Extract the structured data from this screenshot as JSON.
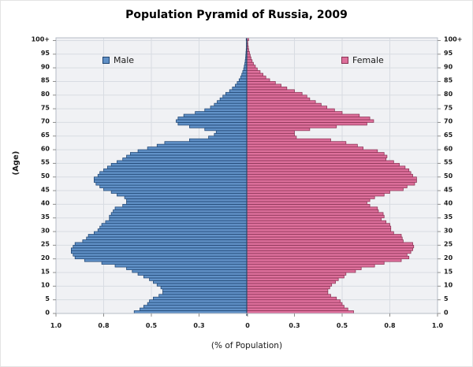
{
  "title": "Population Pyramid of Russia, 2009",
  "legend": {
    "male_label": "Male",
    "female_label": "Female"
  },
  "axes": {
    "y_title": "(Age)",
    "x_title": "(% of Population)",
    "y_tick_labels": [
      "0",
      "5",
      "10",
      "15",
      "20",
      "25",
      "30",
      "35",
      "40",
      "45",
      "50",
      "55",
      "60",
      "65",
      "70",
      "75",
      "80",
      "85",
      "90",
      "95",
      "100+"
    ],
    "x_tick_values": [
      1.0,
      0.75,
      0.5,
      0.25
    ],
    "x_tick_labels_outer": [
      "1.0",
      "0.8",
      "0.5",
      "0.3"
    ],
    "x_center_label": "0"
  },
  "colors": {
    "male_fill": "#6090c6",
    "male_border": "#1f4572",
    "female_fill": "#dd6f9b",
    "female_border": "#8a3354",
    "plot_bg": "#f0f1f4",
    "gridline": "#d8dce2",
    "plot_border": "#b6bcc6",
    "center_axis": "#2a4a6b",
    "tick": "#8c8c8c",
    "label_text": "#1a1a1a"
  },
  "chart_data": {
    "type": "bar",
    "subtype": "population-pyramid",
    "title": "Population Pyramid of Russia, 2009",
    "xlabel": "(% of Population)",
    "ylabel": "(Age)",
    "age_min": 0,
    "age_max": 100,
    "age_top_label": "100+",
    "x_range_each_side": [
      0,
      1.0
    ],
    "grid": true,
    "legend_position": "top-inside",
    "series": [
      {
        "name": "Male",
        "side": "left",
        "values": [
          0.59,
          0.56,
          0.54,
          0.52,
          0.51,
          0.49,
          0.46,
          0.44,
          0.44,
          0.45,
          0.47,
          0.49,
          0.51,
          0.54,
          0.57,
          0.6,
          0.63,
          0.69,
          0.76,
          0.85,
          0.9,
          0.91,
          0.92,
          0.92,
          0.91,
          0.9,
          0.86,
          0.84,
          0.83,
          0.8,
          0.78,
          0.77,
          0.76,
          0.74,
          0.72,
          0.72,
          0.71,
          0.7,
          0.69,
          0.65,
          0.63,
          0.63,
          0.64,
          0.68,
          0.71,
          0.75,
          0.77,
          0.79,
          0.8,
          0.8,
          0.78,
          0.77,
          0.75,
          0.73,
          0.71,
          0.68,
          0.65,
          0.63,
          0.61,
          0.57,
          0.52,
          0.47,
          0.43,
          0.3,
          0.2,
          0.17,
          0.16,
          0.22,
          0.3,
          0.36,
          0.37,
          0.36,
          0.33,
          0.27,
          0.22,
          0.19,
          0.17,
          0.155,
          0.14,
          0.125,
          0.11,
          0.09,
          0.075,
          0.06,
          0.05,
          0.04,
          0.032,
          0.026,
          0.021,
          0.016,
          0.013,
          0.01,
          0.008,
          0.006,
          0.005,
          0.004,
          0.003,
          0.002,
          0.002,
          0.001,
          0.003
        ]
      },
      {
        "name": "Female",
        "side": "right",
        "values": [
          0.56,
          0.53,
          0.51,
          0.5,
          0.49,
          0.47,
          0.44,
          0.425,
          0.425,
          0.435,
          0.445,
          0.465,
          0.48,
          0.51,
          0.52,
          0.57,
          0.6,
          0.67,
          0.72,
          0.81,
          0.85,
          0.84,
          0.86,
          0.87,
          0.875,
          0.87,
          0.82,
          0.815,
          0.81,
          0.77,
          0.755,
          0.755,
          0.75,
          0.73,
          0.705,
          0.72,
          0.715,
          0.69,
          0.685,
          0.645,
          0.63,
          0.645,
          0.67,
          0.72,
          0.75,
          0.82,
          0.84,
          0.88,
          0.89,
          0.89,
          0.87,
          0.86,
          0.85,
          0.83,
          0.8,
          0.77,
          0.73,
          0.735,
          0.72,
          0.685,
          0.61,
          0.58,
          0.52,
          0.44,
          0.26,
          0.25,
          0.25,
          0.33,
          0.47,
          0.63,
          0.665,
          0.645,
          0.59,
          0.5,
          0.46,
          0.42,
          0.39,
          0.36,
          0.33,
          0.315,
          0.29,
          0.25,
          0.21,
          0.18,
          0.15,
          0.12,
          0.1,
          0.085,
          0.07,
          0.055,
          0.045,
          0.035,
          0.028,
          0.022,
          0.018,
          0.014,
          0.01,
          0.008,
          0.006,
          0.005,
          0.01
        ]
      }
    ]
  }
}
